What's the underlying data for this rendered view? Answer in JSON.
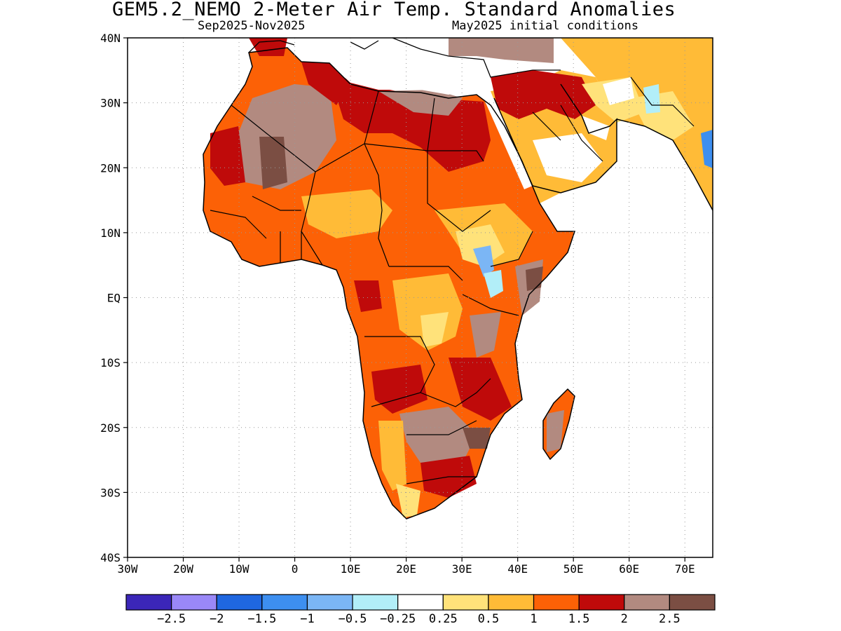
{
  "title": "GEM5.2_NEMO 2-Meter Air Temp. Standard Anomalies",
  "subtitle_left": "Sep2025-Nov2025",
  "subtitle_right": "May2025 initial conditions",
  "map": {
    "lon_range": [
      -30,
      75
    ],
    "lat_range": [
      -40,
      40
    ],
    "lat_ticks": [
      {
        "value": 40,
        "label": "40N"
      },
      {
        "value": 30,
        "label": "30N"
      },
      {
        "value": 20,
        "label": "20N"
      },
      {
        "value": 10,
        "label": "10N"
      },
      {
        "value": 0,
        "label": "EQ"
      },
      {
        "value": -10,
        "label": "10S"
      },
      {
        "value": -20,
        "label": "20S"
      },
      {
        "value": -30,
        "label": "30S"
      },
      {
        "value": -40,
        "label": "40S"
      }
    ],
    "lon_ticks": [
      {
        "value": -30,
        "label": "30W"
      },
      {
        "value": -20,
        "label": "20W"
      },
      {
        "value": -10,
        "label": "10W"
      },
      {
        "value": 0,
        "label": "0"
      },
      {
        "value": 10,
        "label": "10E"
      },
      {
        "value": 20,
        "label": "20E"
      },
      {
        "value": 30,
        "label": "30E"
      },
      {
        "value": 40,
        "label": "40E"
      },
      {
        "value": 50,
        "label": "50E"
      },
      {
        "value": 60,
        "label": "60E"
      },
      {
        "value": 70,
        "label": "70E"
      }
    ],
    "gridlines": "dotted"
  },
  "colorbar": {
    "colors": [
      "#3b26b8",
      "#9a88f7",
      "#1f67e0",
      "#3d8ff0",
      "#7bb6f5",
      "#b2eef8",
      "#ffffff",
      "#ffe27a",
      "#ffbb37",
      "#fc6106",
      "#bf0a0a",
      "#b28a80",
      "#7b4e43"
    ],
    "labels": [
      "-2.5",
      "-2",
      "-1.5",
      "-1",
      "-0.5",
      "-0.25",
      "0.25",
      "0.5",
      "1",
      "1.5",
      "2",
      "2.5"
    ]
  }
}
